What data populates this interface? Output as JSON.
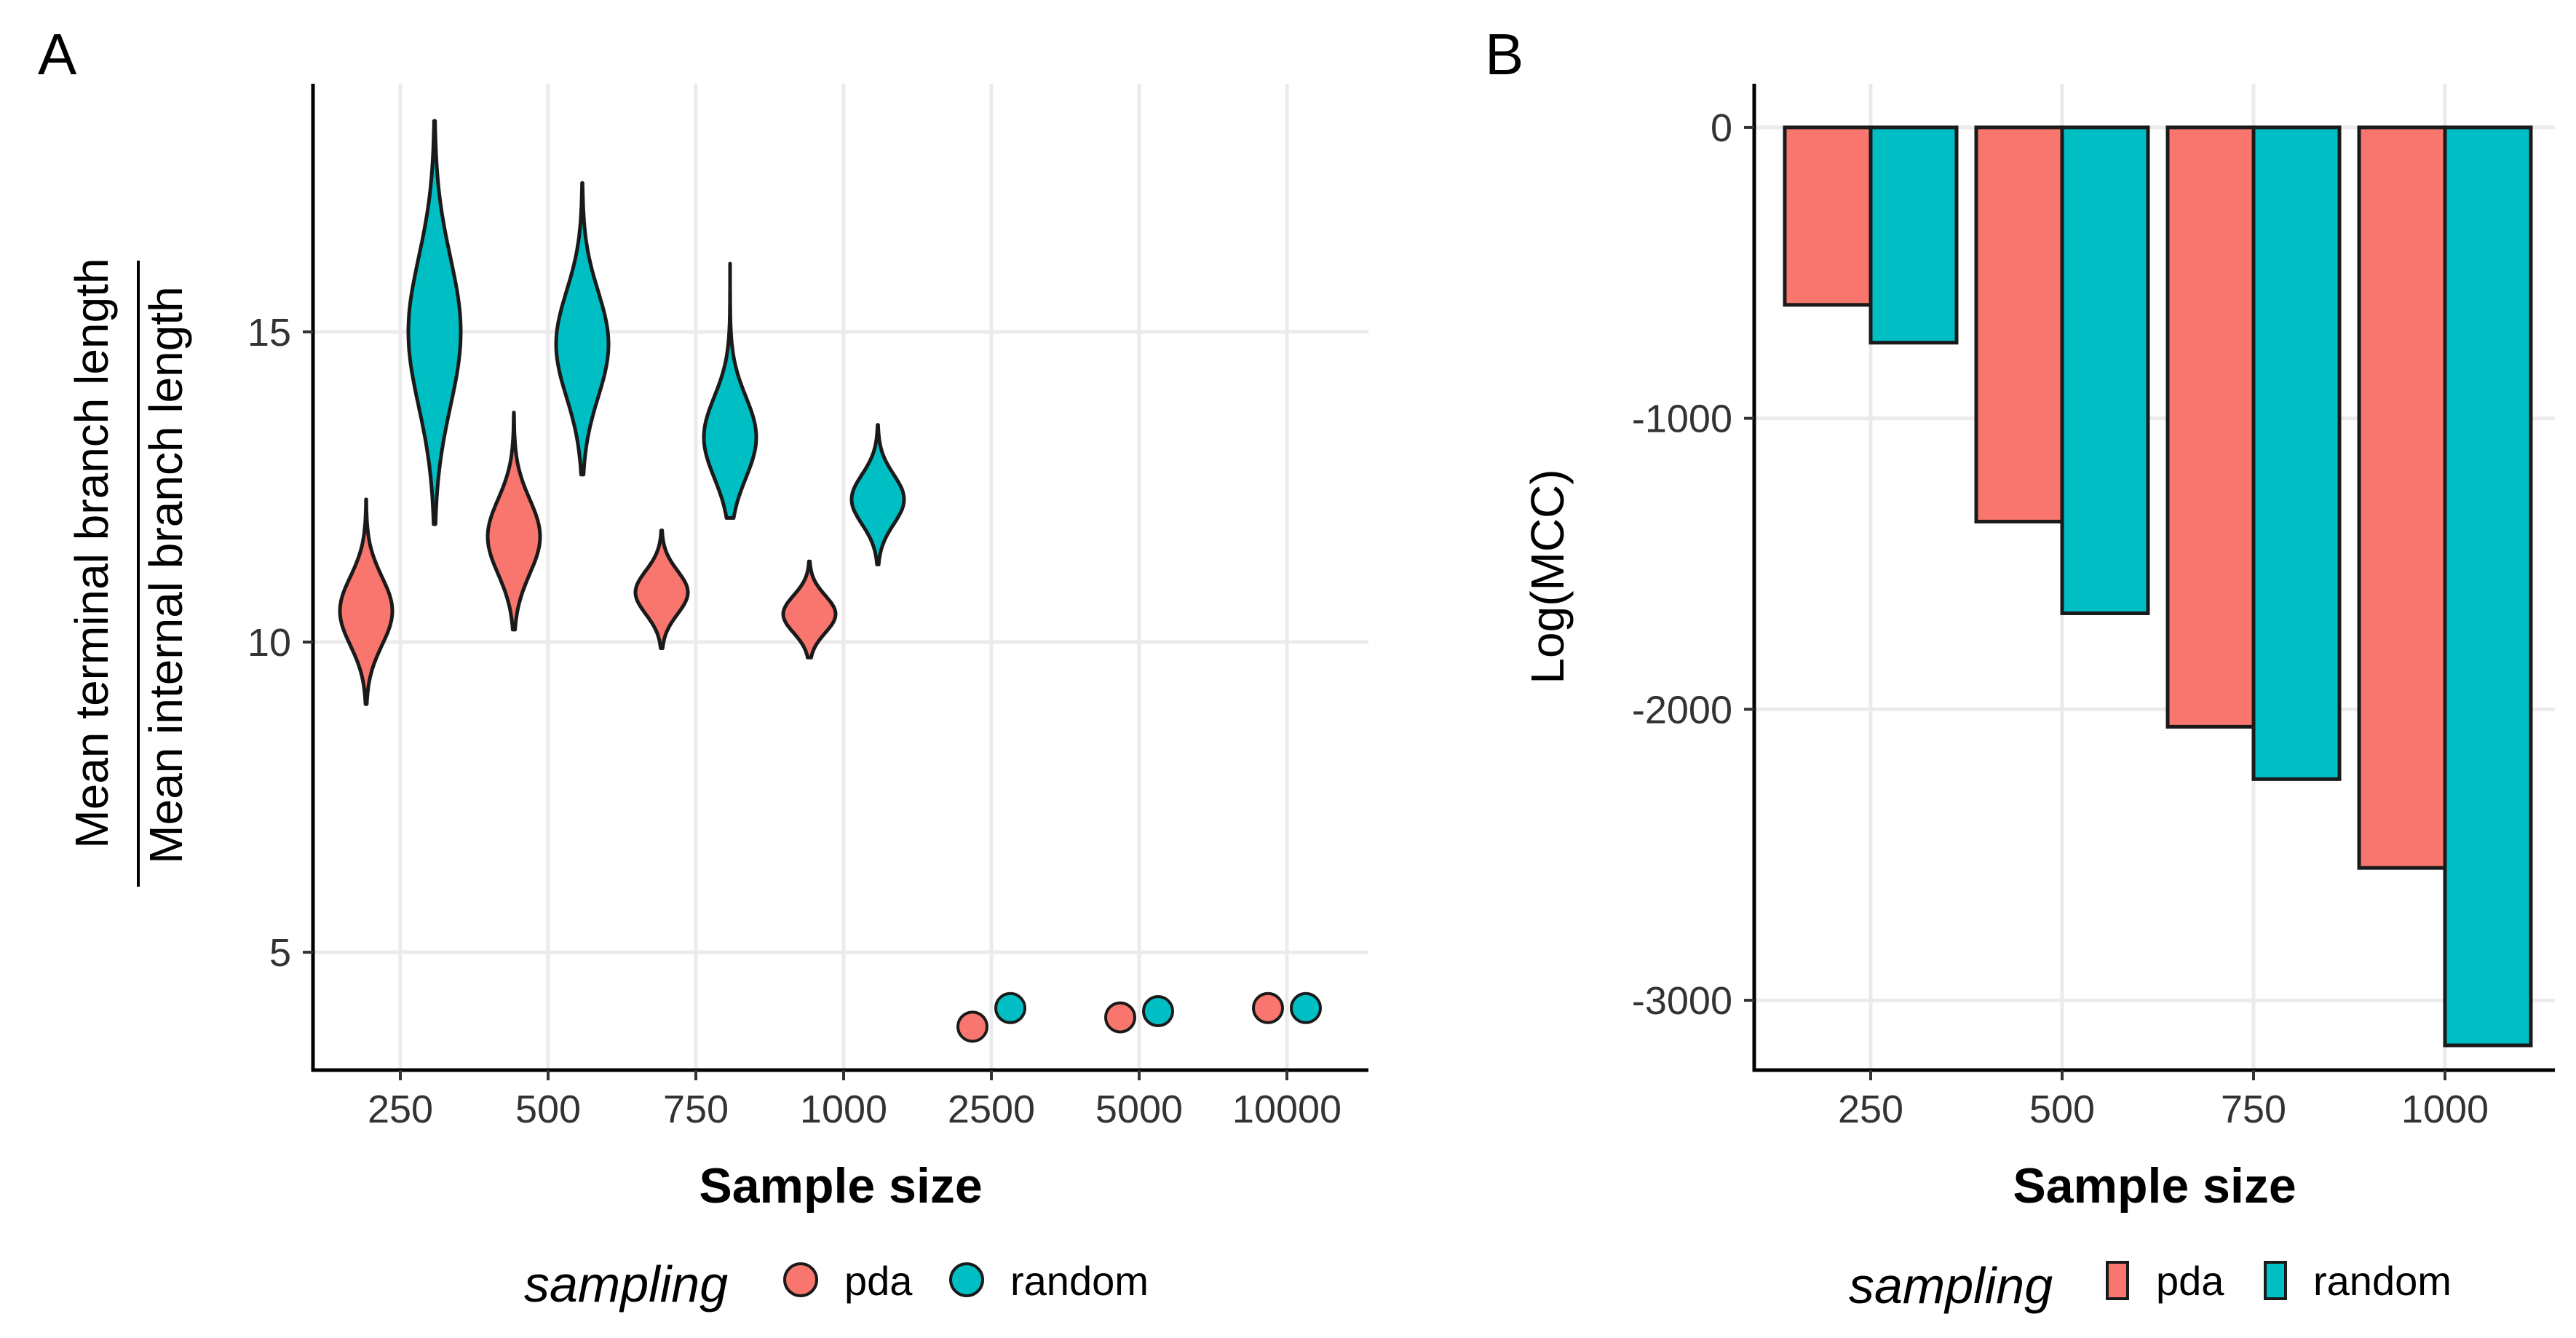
{
  "colors": {
    "pda": "#F8766D",
    "random": "#00BFC4",
    "outline": "#1a1a1a"
  },
  "panels": [
    {
      "letter": "A"
    },
    {
      "letter": "B"
    }
  ],
  "legend": {
    "title": "sampling",
    "items": [
      "pda",
      "random"
    ]
  },
  "chart_data": [
    {
      "type": "violin",
      "panel": "A",
      "title": "",
      "xlabel": "Sample size",
      "ylabel_numerator": "Mean terminal branch length",
      "ylabel_denominator": "Mean internal branch length",
      "categories": [
        "250",
        "500",
        "750",
        "1000",
        "2500",
        "5000",
        "10000"
      ],
      "yticks": [
        5,
        10,
        15
      ],
      "ylim": [
        3.1,
        19.0
      ],
      "grid": true,
      "legend_position": "bottom",
      "series": [
        {
          "name": "pda",
          "violins": [
            {
              "category": "250",
              "min": 9.0,
              "max": 12.3,
              "median": 10.5,
              "spread": 0.55
            },
            {
              "category": "500",
              "min": 10.2,
              "max": 13.7,
              "median": 11.7,
              "spread": 0.6
            },
            {
              "category": "750",
              "min": 9.9,
              "max": 11.8,
              "median": 10.8,
              "spread": 0.35
            },
            {
              "category": "1000",
              "min": 9.75,
              "max": 11.3,
              "median": 10.45,
              "spread": 0.3
            }
          ],
          "points": [
            {
              "category": "2500",
              "value": 3.8
            },
            {
              "category": "5000",
              "value": 3.95
            },
            {
              "category": "10000",
              "value": 4.1
            }
          ]
        },
        {
          "name": "random",
          "violins": [
            {
              "category": "250",
              "min": 11.9,
              "max": 18.4,
              "median": 15.0,
              "spread": 1.2
            },
            {
              "category": "500",
              "min": 12.7,
              "max": 17.4,
              "median": 14.8,
              "spread": 0.85
            },
            {
              "category": "750",
              "min": 12.0,
              "max": 16.1,
              "median": 13.3,
              "spread": 0.65
            },
            {
              "category": "1000",
              "min": 11.25,
              "max": 13.5,
              "median": 12.3,
              "spread": 0.4
            }
          ],
          "points": [
            {
              "category": "2500",
              "value": 4.1
            },
            {
              "category": "5000",
              "value": 4.05
            },
            {
              "category": "10000",
              "value": 4.1
            }
          ]
        }
      ]
    },
    {
      "type": "bar",
      "panel": "B",
      "title": "",
      "xlabel": "Sample size",
      "ylabel": "Log(MCC)",
      "categories": [
        "250",
        "500",
        "750",
        "1000"
      ],
      "yticks": [
        0,
        -1000,
        -2000,
        -3000
      ],
      "ylim": [
        -3240,
        150
      ],
      "grid": true,
      "legend_position": "bottom",
      "series": [
        {
          "name": "pda",
          "values": [
            -610,
            -1355,
            -2060,
            -2545
          ]
        },
        {
          "name": "random",
          "values": [
            -740,
            -1670,
            -2240,
            -3155
          ]
        }
      ]
    }
  ]
}
